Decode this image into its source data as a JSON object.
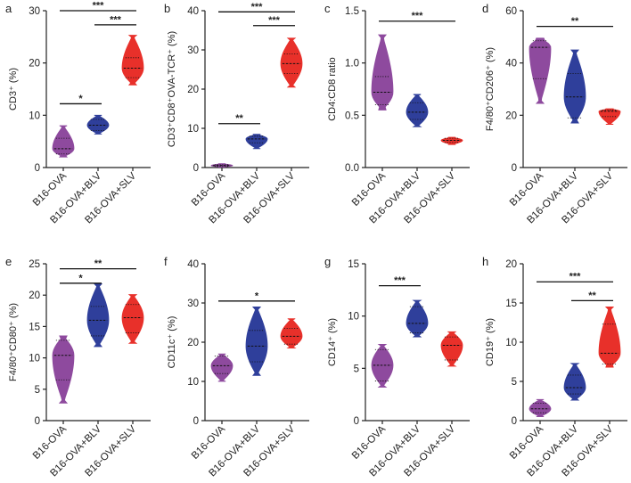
{
  "figure": {
    "categories": [
      "B16-OVA",
      "B16-OVA+BLV",
      "B16-OVA+SLV"
    ],
    "colors": {
      "B16-OVA": "#8e4a9e",
      "B16-OVA+BLV": "#2f3f9b",
      "B16-OVA+SLV": "#e8302a",
      "axis": "#222222"
    }
  },
  "chart_data": [
    {
      "id": "a",
      "letter": "a",
      "type": "violin",
      "ylabel": "CD3⁺ (%)",
      "ylim": [
        0,
        30
      ],
      "yticks": [
        0,
        10,
        20,
        30
      ],
      "groups": [
        {
          "name": "B16-OVA",
          "min": 2.0,
          "max": 8.0,
          "median": 3.6,
          "q1": 2.6,
          "q3": 5.6
        },
        {
          "name": "B16-OVA+BLV",
          "min": 6.4,
          "max": 10.0,
          "median": 8.1,
          "q1": 7.1,
          "q3": 9.2
        },
        {
          "name": "B16-OVA+SLV",
          "min": 15.8,
          "max": 25.3,
          "median": 19.0,
          "q1": 17.2,
          "q3": 21.0
        }
      ],
      "significance": [
        {
          "from": 0,
          "to": 2,
          "label": "***",
          "y": 30.0
        },
        {
          "from": 1,
          "to": 2,
          "label": "***",
          "y": 27.3
        },
        {
          "from": 0,
          "to": 1,
          "label": "*",
          "y": 12.2
        }
      ]
    },
    {
      "id": "b",
      "letter": "b",
      "type": "violin",
      "ylabel": "CD3⁺CD8⁺OVA-TCR⁺ (%)",
      "ylim": [
        0,
        40
      ],
      "yticks": [
        0,
        10,
        20,
        30,
        40
      ],
      "groups": [
        {
          "name": "B16-OVA",
          "min": 0.1,
          "max": 1.0,
          "median": 0.5,
          "q1": 0.3,
          "q3": 0.7
        },
        {
          "name": "B16-OVA+BLV",
          "min": 4.8,
          "max": 8.5,
          "median": 7.3,
          "q1": 6.3,
          "q3": 8.0
        },
        {
          "name": "B16-OVA+SLV",
          "min": 20.5,
          "max": 33.0,
          "median": 26.5,
          "q1": 24.0,
          "q3": 29.0
        }
      ],
      "significance": [
        {
          "from": 0,
          "to": 2,
          "label": "***",
          "y": 39.7
        },
        {
          "from": 1,
          "to": 2,
          "label": "***",
          "y": 36.2
        },
        {
          "from": 0,
          "to": 1,
          "label": "**",
          "y": 11.2
        }
      ]
    },
    {
      "id": "c",
      "letter": "c",
      "type": "violin",
      "ylabel": "CD4:CD8 ratio",
      "ylim": [
        0,
        1.5
      ],
      "yticks": [
        0.0,
        0.5,
        1.0,
        1.5
      ],
      "tickDecimals": 1,
      "groups": [
        {
          "name": "B16-OVA",
          "min": 0.55,
          "max": 1.27,
          "median": 0.72,
          "q1": 0.6,
          "q3": 0.87
        },
        {
          "name": "B16-OVA+BLV",
          "min": 0.39,
          "max": 0.7,
          "median": 0.53,
          "q1": 0.46,
          "q3": 0.62
        },
        {
          "name": "B16-OVA+SLV",
          "min": 0.22,
          "max": 0.29,
          "median": 0.26,
          "q1": 0.24,
          "q3": 0.28
        }
      ],
      "significance": [
        {
          "from": 0,
          "to": 2,
          "label": "***",
          "y": 1.4
        }
      ]
    },
    {
      "id": "d",
      "letter": "d",
      "type": "violin",
      "ylabel": "F4/80⁺CD206⁺ (%)",
      "ylim": [
        0,
        60
      ],
      "yticks": [
        0,
        20,
        40,
        60
      ],
      "groups": [
        {
          "name": "B16-OVA",
          "min": 24.5,
          "max": 49.5,
          "median": 46.0,
          "q1": 34.0,
          "q3": 48.5
        },
        {
          "name": "B16-OVA+BLV",
          "min": 17.0,
          "max": 45.0,
          "median": 27.0,
          "q1": 19.0,
          "q3": 36.0
        },
        {
          "name": "B16-OVA+SLV",
          "min": 16.5,
          "max": 22.5,
          "median": 21.5,
          "q1": 19.5,
          "q3": 22.0
        }
      ],
      "significance": [
        {
          "from": 0,
          "to": 2,
          "label": "**",
          "y": 54.0
        }
      ]
    },
    {
      "id": "e",
      "letter": "e",
      "type": "violin",
      "ylabel": "F4/80⁺CD80⁺ (%)",
      "ylim": [
        0,
        25
      ],
      "yticks": [
        0,
        5,
        10,
        15,
        20,
        25
      ],
      "groups": [
        {
          "name": "B16-OVA",
          "min": 2.8,
          "max": 13.5,
          "median": 10.4,
          "q1": 6.5,
          "q3": 12.8
        },
        {
          "name": "B16-OVA+BLV",
          "min": 11.8,
          "max": 21.8,
          "median": 16.0,
          "q1": 13.5,
          "q3": 18.2
        },
        {
          "name": "B16-OVA+SLV",
          "min": 12.3,
          "max": 20.1,
          "median": 16.4,
          "q1": 14.0,
          "q3": 18.5
        }
      ],
      "significance": [
        {
          "from": 0,
          "to": 2,
          "label": "**",
          "y": 24.2
        },
        {
          "from": 0,
          "to": 1,
          "label": "*",
          "y": 21.9
        }
      ]
    },
    {
      "id": "f",
      "letter": "f",
      "type": "violin",
      "ylabel": "CD11c⁺ (%)",
      "ylim": [
        0,
        40
      ],
      "yticks": [
        0,
        10,
        20,
        30,
        40
      ],
      "groups": [
        {
          "name": "B16-OVA",
          "min": 10.0,
          "max": 17.0,
          "median": 14.0,
          "q1": 12.0,
          "q3": 16.5
        },
        {
          "name": "B16-OVA+BLV",
          "min": 11.5,
          "max": 29.0,
          "median": 19.0,
          "q1": 15.0,
          "q3": 23.0
        },
        {
          "name": "B16-OVA+SLV",
          "min": 18.5,
          "max": 26.0,
          "median": 21.5,
          "q1": 19.5,
          "q3": 23.5
        }
      ],
      "significance": [
        {
          "from": 0,
          "to": 2,
          "label": "*",
          "y": 30.5
        }
      ]
    },
    {
      "id": "g",
      "letter": "g",
      "type": "violin",
      "ylabel": "CD14⁺ (%)",
      "ylim": [
        0,
        15
      ],
      "yticks": [
        0,
        5,
        10,
        15
      ],
      "groups": [
        {
          "name": "B16-OVA",
          "min": 3.2,
          "max": 7.3,
          "median": 5.3,
          "q1": 3.8,
          "q3": 6.8
        },
        {
          "name": "B16-OVA+BLV",
          "min": 8.0,
          "max": 11.5,
          "median": 9.3,
          "q1": 8.4,
          "q3": 10.9
        },
        {
          "name": "B16-OVA+SLV",
          "min": 5.2,
          "max": 8.5,
          "median": 7.2,
          "q1": 5.8,
          "q3": 8.0
        }
      ],
      "significance": [
        {
          "from": 0,
          "to": 1,
          "label": "***",
          "y": 12.9
        }
      ]
    },
    {
      "id": "h",
      "letter": "h",
      "type": "violin",
      "ylabel": "CD19⁺ (%)",
      "ylim": [
        0,
        20
      ],
      "yticks": [
        0,
        5,
        10,
        15,
        20
      ],
      "groups": [
        {
          "name": "B16-OVA",
          "min": 0.5,
          "max": 2.7,
          "median": 1.5,
          "q1": 1.0,
          "q3": 2.2
        },
        {
          "name": "B16-OVA+BLV",
          "min": 2.6,
          "max": 7.3,
          "median": 4.2,
          "q1": 3.4,
          "q3": 5.8
        },
        {
          "name": "B16-OVA+SLV",
          "min": 6.8,
          "max": 14.5,
          "median": 8.6,
          "q1": 7.2,
          "q3": 12.3
        }
      ],
      "significance": [
        {
          "from": 0,
          "to": 2,
          "label": "***",
          "y": 17.7
        },
        {
          "from": 1,
          "to": 2,
          "label": "**",
          "y": 15.3
        }
      ]
    }
  ]
}
